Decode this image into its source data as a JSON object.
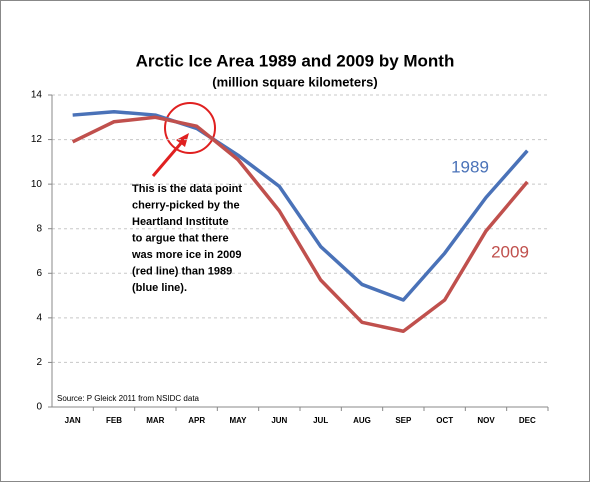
{
  "chart_data": {
    "type": "line",
    "title": "Arctic Ice Area 1989 and 2009 by Month",
    "subtitle": "(million square kilometers)",
    "categories": [
      "JAN",
      "FEB",
      "MAR",
      "APR",
      "MAY",
      "JUN",
      "JUL",
      "AUG",
      "SEP",
      "OCT",
      "NOV",
      "DEC"
    ],
    "series": [
      {
        "name": "1989",
        "color": "#4a72b8",
        "values": [
          13.1,
          13.25,
          13.1,
          12.5,
          11.3,
          9.9,
          7.2,
          5.5,
          4.8,
          6.9,
          9.4,
          11.5
        ]
      },
      {
        "name": "2009",
        "color": "#c0504d",
        "values": [
          11.9,
          12.8,
          13.0,
          12.6,
          11.1,
          8.8,
          5.7,
          3.8,
          3.4,
          4.8,
          7.9,
          10.1
        ]
      }
    ],
    "ylim": [
      0,
      14
    ],
    "yticks": [
      0,
      2,
      4,
      6,
      8,
      10,
      12,
      14
    ],
    "grid": true,
    "annotation_lines": [
      "This is the data point",
      "cherry-picked by the",
      "Heartland Institute",
      "to argue that there",
      "was more ice in 2009",
      "(red line) than 1989",
      "(blue line)."
    ],
    "source": "Source: P Gleick 2011 from NSIDC data"
  }
}
